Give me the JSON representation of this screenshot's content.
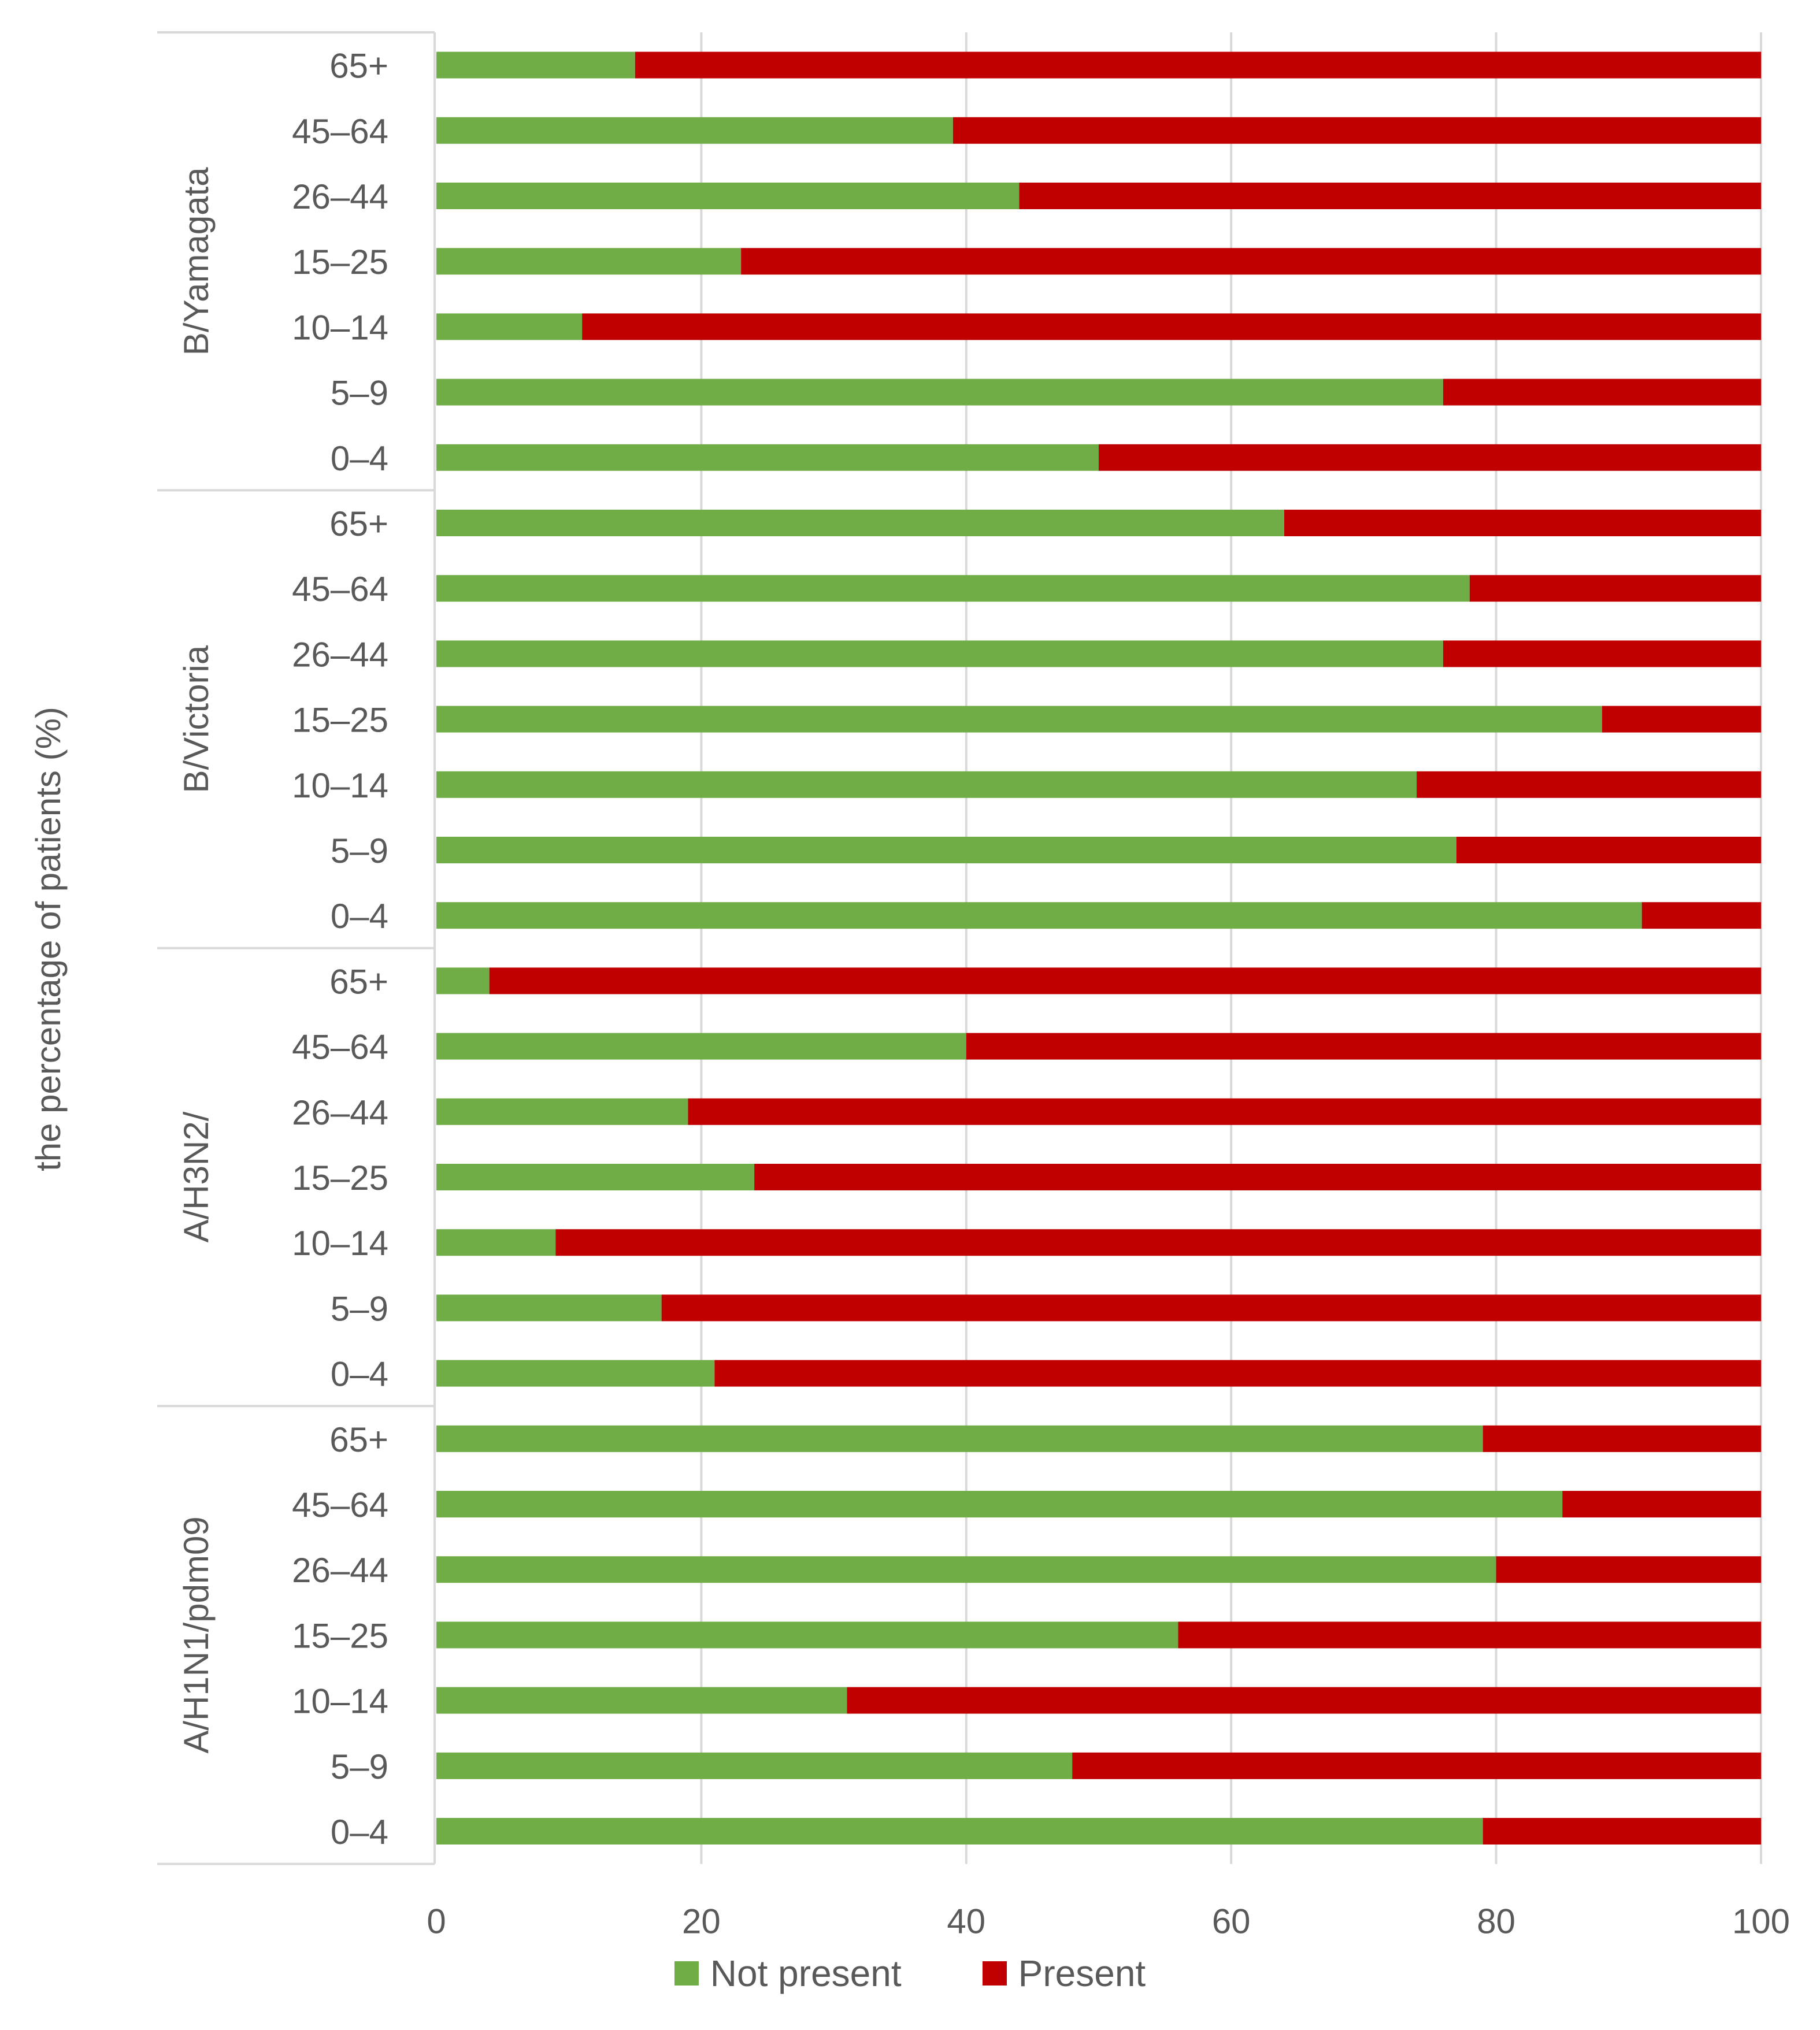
{
  "chart_data": {
    "type": "bar",
    "orientation": "horizontal",
    "stacked": true,
    "ylabel": "the percentage of patients (%)",
    "xlabel": "",
    "xlim": [
      0,
      100
    ],
    "xticks": [
      0,
      20,
      40,
      60,
      80,
      100
    ],
    "grid": true,
    "legend_position": "bottom",
    "series_colors": [
      "#70ad47",
      "#c00000"
    ],
    "series_names": [
      "Not present",
      "Present"
    ],
    "groups": [
      {
        "name": "B/Yamagata",
        "categories": [
          "65+",
          "45–64",
          "26–44",
          "15–25",
          "10–14",
          "5–9",
          "0–4"
        ],
        "not_present": [
          15,
          39,
          44,
          23,
          11,
          76,
          50
        ],
        "present": [
          85,
          61,
          56,
          77,
          89,
          24,
          50
        ]
      },
      {
        "name": "B/Victoria",
        "categories": [
          "65+",
          "45–64",
          "26–44",
          "15–25",
          "10–14",
          "5–9",
          "0–4"
        ],
        "not_present": [
          64,
          78,
          76,
          88,
          74,
          77,
          91
        ],
        "present": [
          36,
          22,
          24,
          12,
          26,
          23,
          9
        ]
      },
      {
        "name": "A/H3N2/",
        "categories": [
          "65+",
          "45–64",
          "26–44",
          "15–25",
          "10–14",
          "5–9",
          "0–4"
        ],
        "not_present": [
          4,
          40,
          19,
          24,
          9,
          17,
          21
        ],
        "present": [
          96,
          60,
          81,
          76,
          91,
          83,
          79
        ]
      },
      {
        "name": "A/H1N1/pdm09",
        "categories": [
          "65+",
          "45–64",
          "26–44",
          "15–25",
          "10–14",
          "5–9",
          "0–4"
        ],
        "not_present": [
          79,
          85,
          80,
          56,
          31,
          48,
          79
        ],
        "present": [
          21,
          15,
          20,
          44,
          69,
          52,
          21
        ]
      }
    ]
  },
  "legend": {
    "not_present_label": "Not present",
    "present_label": "Present"
  }
}
